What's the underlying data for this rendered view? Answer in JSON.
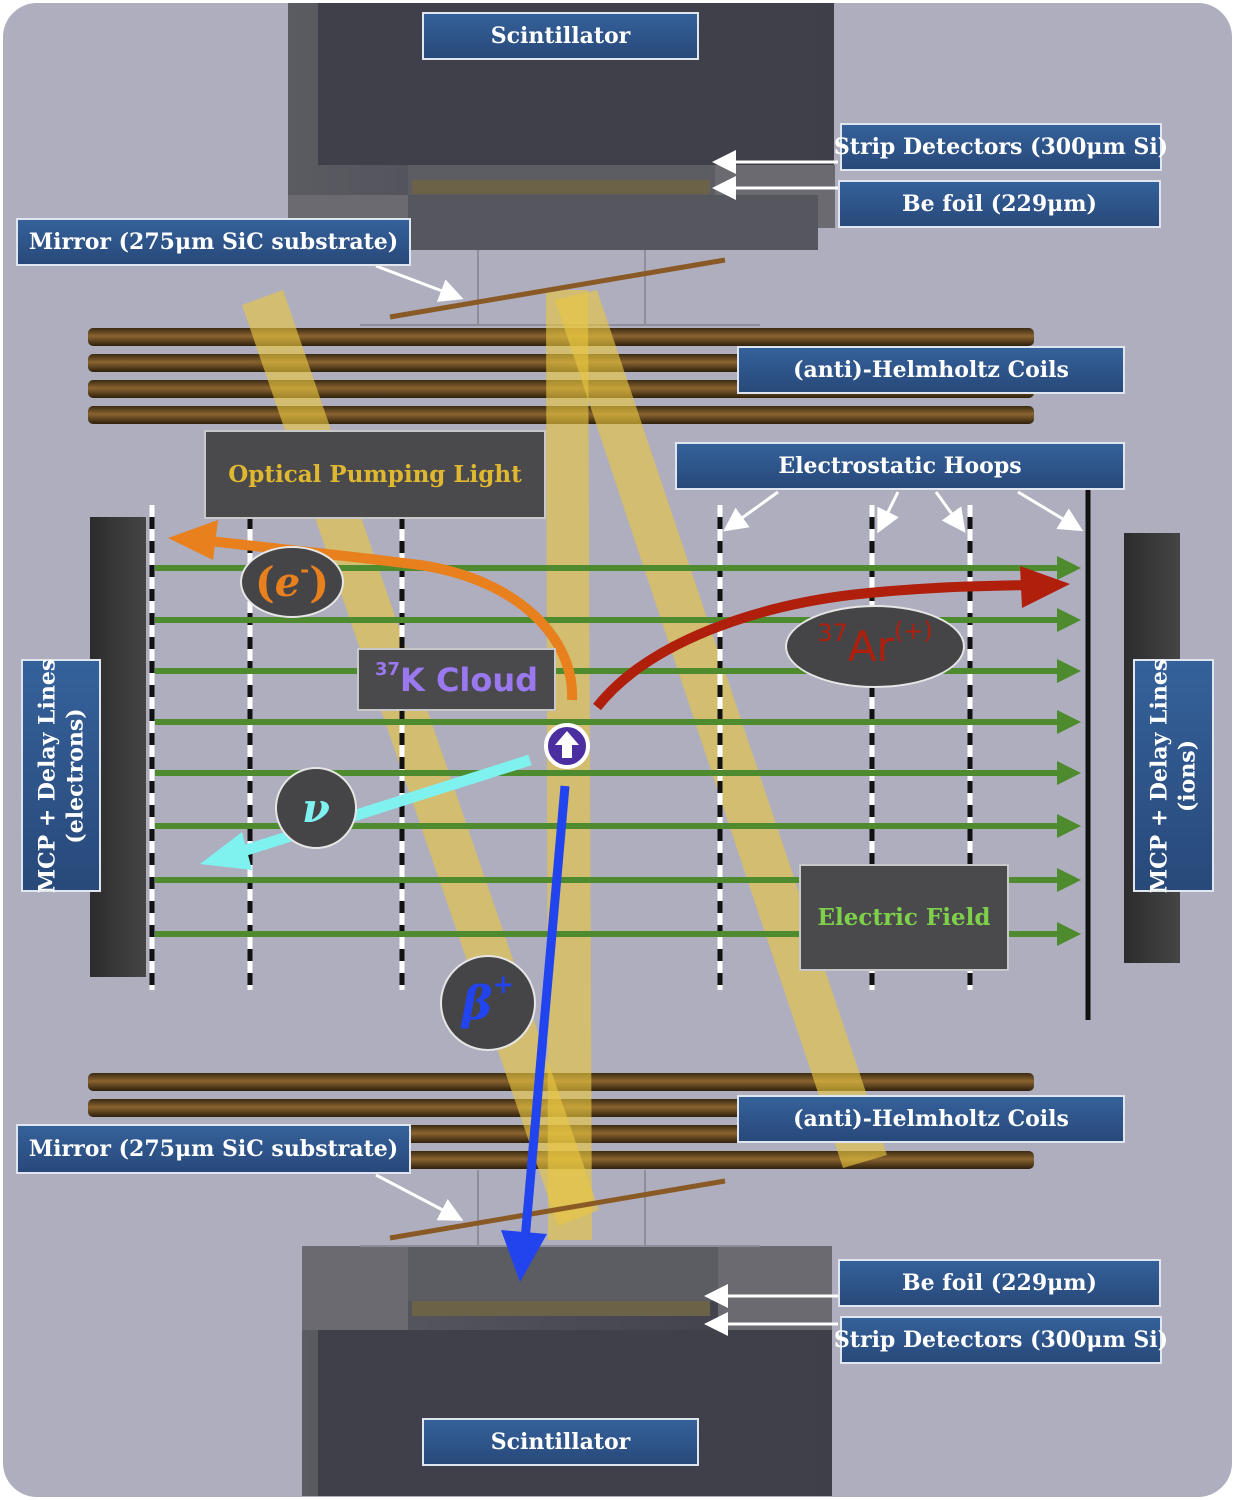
{
  "labels": {
    "scintillator_top": "Scintillator",
    "scintillator_bottom": "Scintillator",
    "strip_top": "Strip Detectors (300μm Si)",
    "strip_bottom": "Strip Detectors (300μm Si)",
    "befoil_top": "Be foil (229μm)",
    "befoil_bottom": "Be foil (229μm)",
    "mirror_top": "Mirror (275μm SiC substrate)",
    "mirror_bottom": "Mirror (275μm SiC substrate)",
    "coils_top": "(anti)-Helmholtz Coils",
    "coils_bottom": "(anti)-Helmholtz Coils",
    "hoops": "Electrostatic Hoops",
    "mcp_left_line1": "MCP + Delay Lines",
    "mcp_left_line2": "(electrons)",
    "mcp_right_line1": "MCP + Delay Lines",
    "mcp_right_line2": "(ions)",
    "optical_pumping": "Optical Pumping Light",
    "cloud_mass": "37",
    "cloud_name": "K Cloud",
    "electric_field": "Electric Field"
  },
  "particles": {
    "electron": "e",
    "electron_charge": "-",
    "argon_mass": "37",
    "argon_symbol": "Ar",
    "argon_charge": "(+)",
    "neutrino": "ν",
    "beta": "β",
    "beta_charge": "+"
  },
  "colors": {
    "background": "#aeaebe",
    "label_blue": "#2e5589",
    "optical_text": "#e0b830",
    "cloud_text": "#9a78f0",
    "field_text": "#7ed04a",
    "field_lines": "#4e8a2e",
    "electron_arrow": "#e8801e",
    "argon_arrow": "#b01e0c",
    "neutrino_arrow": "#7ff2f0",
    "beta_arrow": "#2244ee",
    "laser_beam": "#e8c640",
    "mirror": "#8a5a26",
    "coil": "#6a4a1c"
  }
}
